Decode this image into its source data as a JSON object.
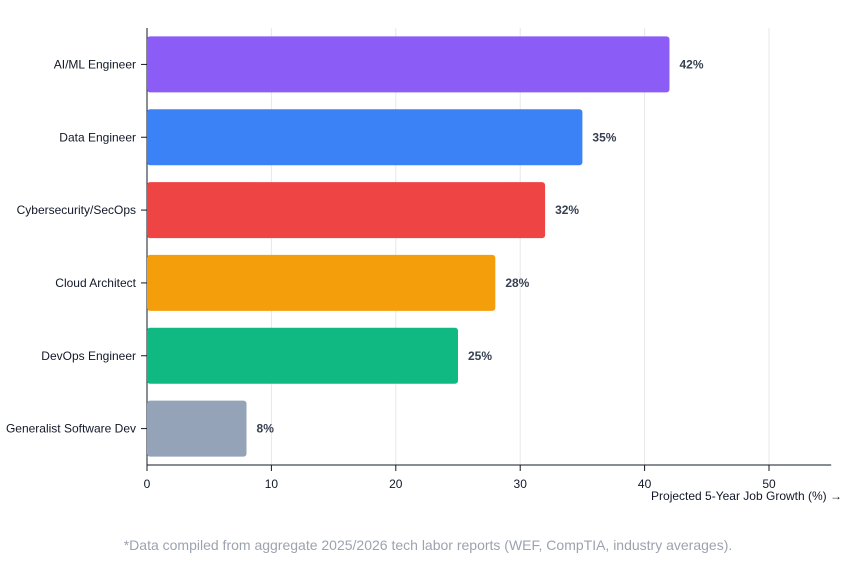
{
  "chart_data": {
    "type": "bar",
    "orientation": "horizontal",
    "categories": [
      "AI/ML Engineer",
      "Data Engineer",
      "Cybersecurity/SecOps",
      "Cloud Architect",
      "DevOps Engineer",
      "Generalist Software Dev"
    ],
    "values": [
      42,
      35,
      32,
      28,
      25,
      8
    ],
    "value_labels": [
      "42%",
      "35%",
      "32%",
      "28%",
      "25%",
      "8%"
    ],
    "colors": [
      "#8b5cf6",
      "#3b82f6",
      "#ef4444",
      "#f59e0b",
      "#10b981",
      "#94a3b8"
    ],
    "xlabel": "Projected 5-Year Job Growth (%) →",
    "ylabel": "",
    "xlim": [
      0,
      55
    ],
    "xticks": [
      0,
      10,
      20,
      30,
      40,
      50
    ],
    "grid": true,
    "legend": "none"
  },
  "footnote": "*Data compiled from aggregate 2025/2026 tech labor reports (WEF, CompTIA, industry averages)."
}
